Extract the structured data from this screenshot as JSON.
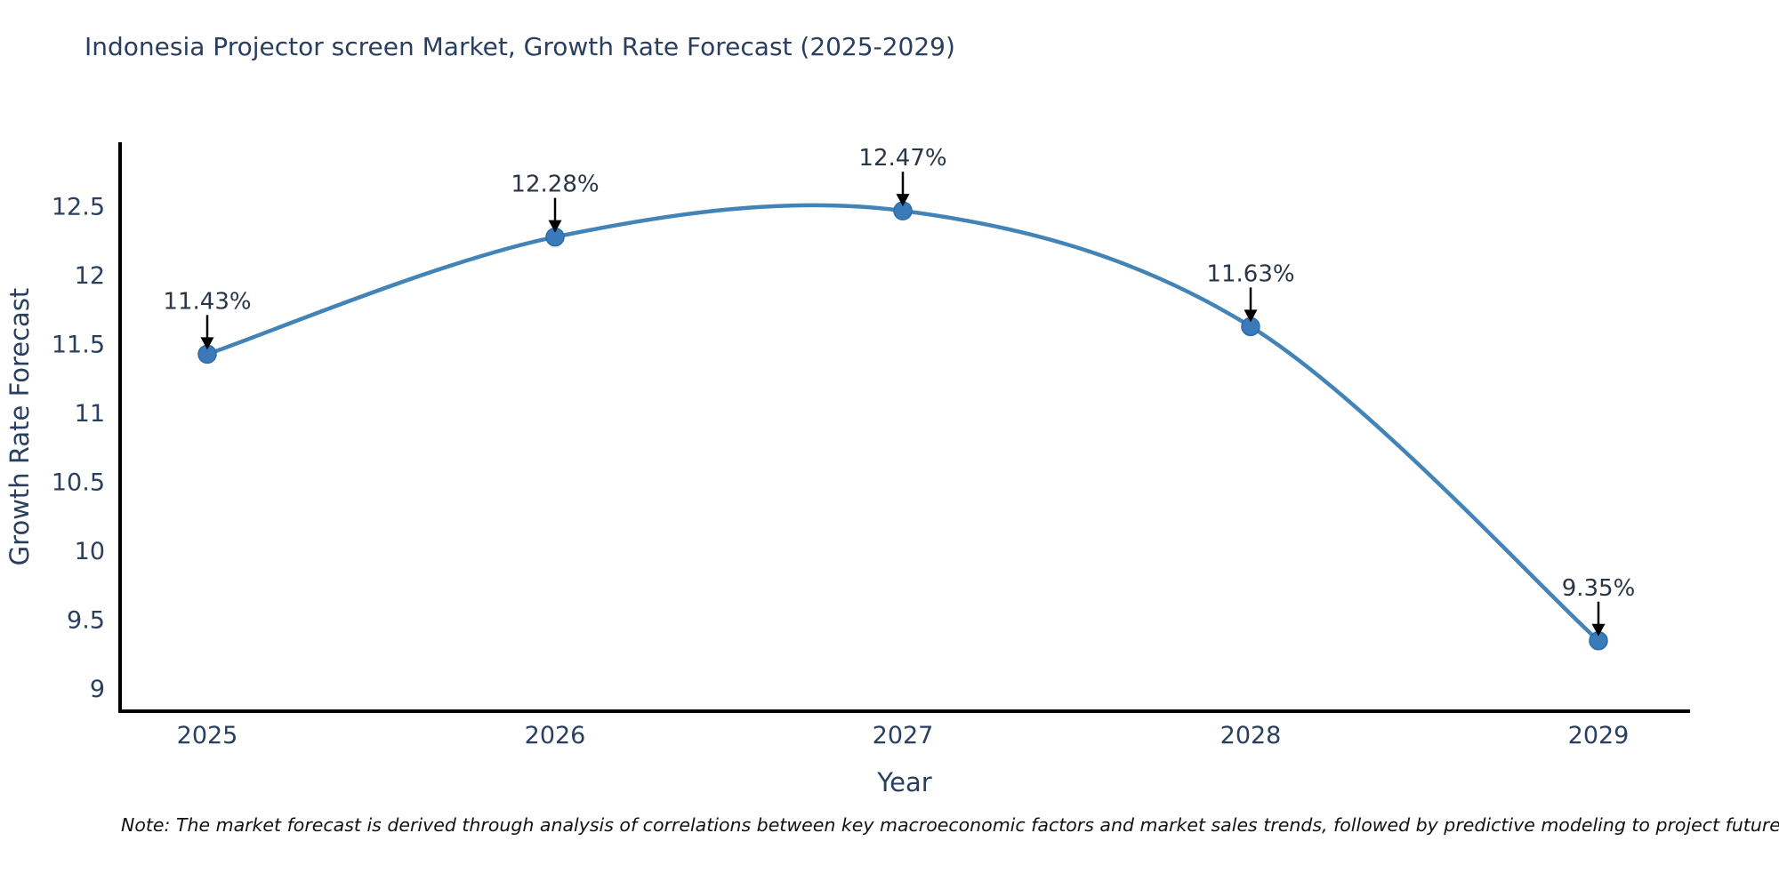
{
  "header": {
    "title": "Indonesia Projector screen Market, Growth Rate Forecast (2025-2029)"
  },
  "chart_data": {
    "type": "line",
    "title": "Indonesia Projector screen Market, Growth Rate Forecast (2025-2029)",
    "curve": "spline",
    "categories": [
      "2025",
      "2026",
      "2027",
      "2028",
      "2029"
    ],
    "series": [
      {
        "name": "Growth Rate Forecast",
        "values": [
          11.43,
          12.28,
          12.47,
          11.63,
          9.35
        ]
      }
    ],
    "point_labels": [
      "11.43%",
      "12.28%",
      "12.47%",
      "11.63%",
      "9.35%"
    ],
    "xlabel": "Year",
    "ylabel": "Growth Rate Forecast",
    "yticks": [
      9,
      9.5,
      10,
      10.5,
      11,
      11.5,
      12,
      12.5
    ],
    "ylim": [
      8.84,
      12.97
    ],
    "grid": false,
    "legend_position": "none",
    "colors": {
      "line": "#4283b8",
      "marker_fill": "#3a7ab8",
      "marker_stroke": "#2e6ca8",
      "axis_line": "#000000",
      "arrow": "#000000",
      "text": "#2a3f5f"
    }
  },
  "footer": {
    "note": "Note: The market forecast is derived through analysis of correlations between key macroeconomic factors and market sales trends, followed by predictive modeling to project future sal"
  }
}
